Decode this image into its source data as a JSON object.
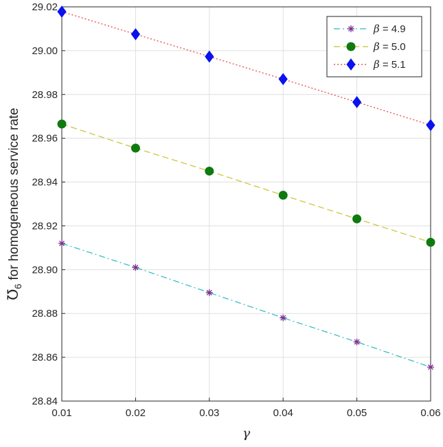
{
  "chart_data": {
    "type": "line",
    "xlabel": "γ",
    "ylabel": {
      "symbol": "℧",
      "subscript": "6",
      "text": " for homogeneous service rate"
    },
    "x": [
      0.01,
      0.02,
      0.03,
      0.04,
      0.05,
      0.06
    ],
    "xlim": [
      0.01,
      0.06
    ],
    "ylim": [
      28.84,
      29.02
    ],
    "xticks": [
      "0.01",
      "0.02",
      "0.03",
      "0.04",
      "0.05",
      "0.06"
    ],
    "yticks": [
      "28.84",
      "28.86",
      "28.88",
      "28.90",
      "28.92",
      "28.94",
      "28.96",
      "28.98",
      "29.00",
      "29.02"
    ],
    "grid": true,
    "legend_position": "top-right",
    "series": [
      {
        "name": "β = 4.9",
        "legend_symbol": "β",
        "legend_value": " = 4.9",
        "values": [
          28.912,
          28.901,
          28.8895,
          28.878,
          28.867,
          28.8555
        ],
        "line_color": "#2ab7c4",
        "marker_color": "#7e2f8e",
        "marker": "asterisk",
        "line_style": "dashdot"
      },
      {
        "name": "β = 5.0",
        "legend_symbol": "β",
        "legend_value": " = 5.0",
        "values": [
          28.9665,
          28.9555,
          28.945,
          28.934,
          28.9232,
          28.9125
        ],
        "line_color": "#c9c22b",
        "marker_color": "#0f7a0f",
        "marker": "circle",
        "line_style": "dashed"
      },
      {
        "name": "β = 5.1",
        "legend_symbol": "β",
        "legend_value": " = 5.1",
        "values": [
          29.0178,
          29.0075,
          28.9973,
          28.987,
          28.9765,
          28.966
        ],
        "line_color": "#e53935",
        "marker_color": "#0a12ee",
        "marker": "diamond",
        "line_style": "dotted"
      }
    ]
  }
}
